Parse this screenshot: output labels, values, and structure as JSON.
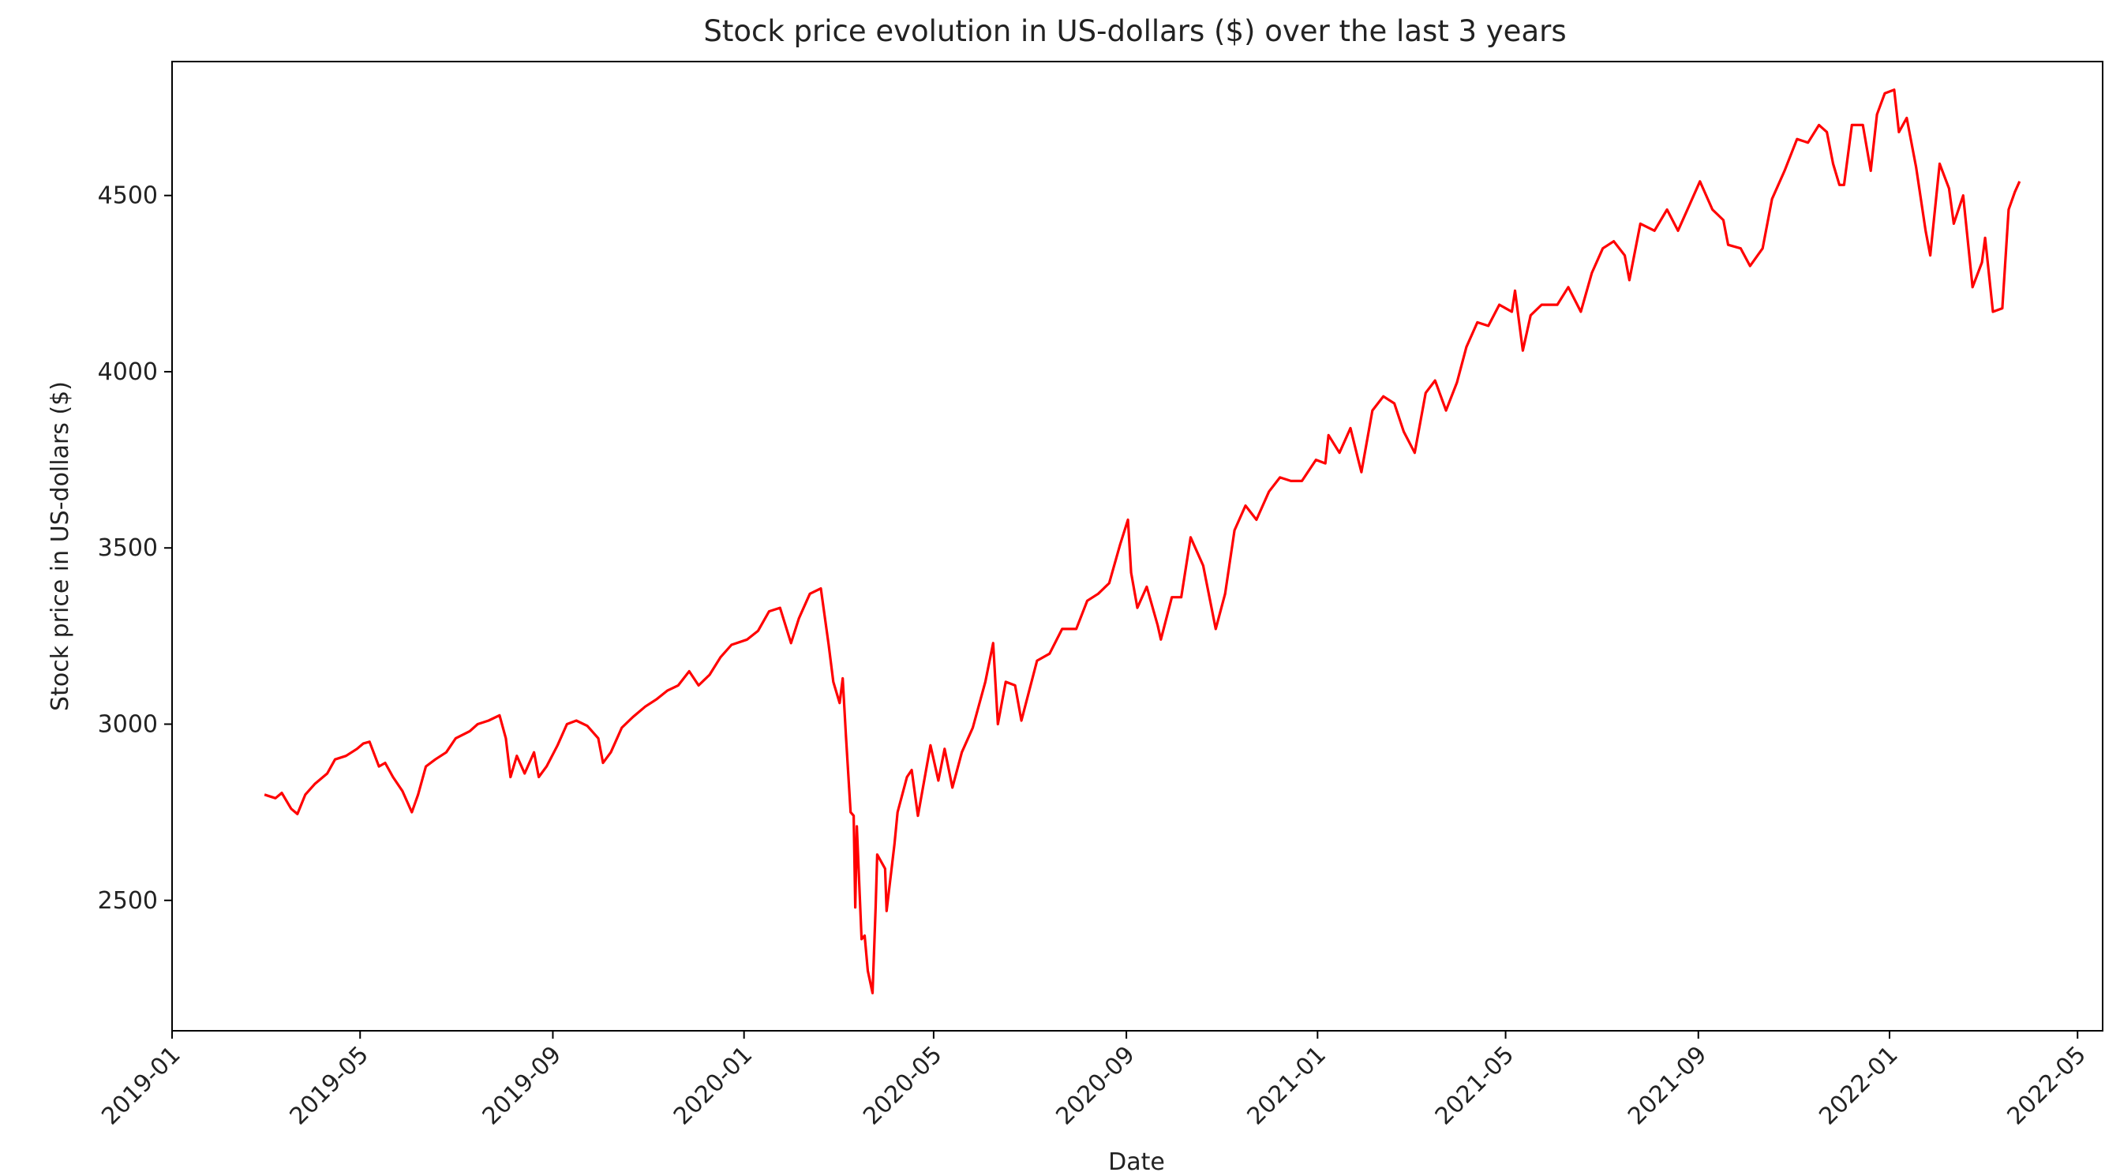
{
  "chart_data": {
    "type": "line",
    "title": "Stock price evolution in US-dollars ($) over the last 3 years",
    "xlabel": "Date",
    "ylabel": "Stock price in US-dollars ($)",
    "x_tick_labels": [
      "2019-01",
      "2019-05",
      "2019-09",
      "2020-01",
      "2020-05",
      "2020-09",
      "2021-01",
      "2021-05",
      "2021-09",
      "2022-01",
      "2022-05"
    ],
    "y_ticks": [
      2500,
      3000,
      3500,
      4000,
      4500
    ],
    "y_tick_labels": [
      "2500",
      "3000",
      "3500",
      "4000",
      "4500"
    ],
    "xlim": [
      "2019-01-01",
      "2022-05-17"
    ],
    "ylim": [
      2130,
      4880
    ],
    "grid": false,
    "series": [
      {
        "name": "Stock price",
        "color": "#ff0000",
        "points": [
          [
            "2019-03-01",
            2800
          ],
          [
            "2019-03-08",
            2790
          ],
          [
            "2019-03-12",
            2805
          ],
          [
            "2019-03-18",
            2760
          ],
          [
            "2019-03-22",
            2745
          ],
          [
            "2019-03-27",
            2800
          ],
          [
            "2019-04-02",
            2830
          ],
          [
            "2019-04-10",
            2860
          ],
          [
            "2019-04-15",
            2900
          ],
          [
            "2019-04-22",
            2910
          ],
          [
            "2019-04-29",
            2930
          ],
          [
            "2019-05-03",
            2945
          ],
          [
            "2019-05-07",
            2950
          ],
          [
            "2019-05-13",
            2880
          ],
          [
            "2019-05-17",
            2890
          ],
          [
            "2019-05-22",
            2850
          ],
          [
            "2019-05-28",
            2810
          ],
          [
            "2019-06-03",
            2750
          ],
          [
            "2019-06-07",
            2800
          ],
          [
            "2019-06-12",
            2880
          ],
          [
            "2019-06-18",
            2900
          ],
          [
            "2019-06-25",
            2920
          ],
          [
            "2019-07-01",
            2960
          ],
          [
            "2019-07-10",
            2980
          ],
          [
            "2019-07-15",
            3000
          ],
          [
            "2019-07-22",
            3010
          ],
          [
            "2019-07-29",
            3025
          ],
          [
            "2019-08-02",
            2960
          ],
          [
            "2019-08-05",
            2850
          ],
          [
            "2019-08-09",
            2910
          ],
          [
            "2019-08-14",
            2860
          ],
          [
            "2019-08-20",
            2920
          ],
          [
            "2019-08-23",
            2850
          ],
          [
            "2019-08-28",
            2880
          ],
          [
            "2019-09-04",
            2940
          ],
          [
            "2019-09-10",
            3000
          ],
          [
            "2019-09-16",
            3010
          ],
          [
            "2019-09-23",
            2995
          ],
          [
            "2019-09-30",
            2960
          ],
          [
            "2019-10-03",
            2890
          ],
          [
            "2019-10-08",
            2920
          ],
          [
            "2019-10-15",
            2990
          ],
          [
            "2019-10-22",
            3020
          ],
          [
            "2019-10-30",
            3050
          ],
          [
            "2019-11-06",
            3070
          ],
          [
            "2019-11-13",
            3095
          ],
          [
            "2019-11-20",
            3110
          ],
          [
            "2019-11-27",
            3150
          ],
          [
            "2019-12-03",
            3110
          ],
          [
            "2019-12-10",
            3140
          ],
          [
            "2019-12-17",
            3190
          ],
          [
            "2019-12-24",
            3225
          ],
          [
            "2020-01-03",
            3240
          ],
          [
            "2020-01-10",
            3265
          ],
          [
            "2020-01-17",
            3320
          ],
          [
            "2020-01-24",
            3330
          ],
          [
            "2020-01-31",
            3230
          ],
          [
            "2020-02-05",
            3300
          ],
          [
            "2020-02-12",
            3370
          ],
          [
            "2020-02-19",
            3385
          ],
          [
            "2020-02-24",
            3225
          ],
          [
            "2020-02-27",
            3120
          ],
          [
            "2020-03-02",
            3060
          ],
          [
            "2020-03-04",
            3130
          ],
          [
            "2020-03-06",
            2970
          ],
          [
            "2020-03-09",
            2750
          ],
          [
            "2020-03-11",
            2740
          ],
          [
            "2020-03-12",
            2480
          ],
          [
            "2020-03-13",
            2710
          ],
          [
            "2020-03-16",
            2390
          ],
          [
            "2020-03-18",
            2400
          ],
          [
            "2020-03-20",
            2300
          ],
          [
            "2020-03-23",
            2237
          ],
          [
            "2020-03-25",
            2480
          ],
          [
            "2020-03-26",
            2630
          ],
          [
            "2020-03-31",
            2590
          ],
          [
            "2020-04-01",
            2470
          ],
          [
            "2020-04-06",
            2660
          ],
          [
            "2020-04-08",
            2750
          ],
          [
            "2020-04-14",
            2850
          ],
          [
            "2020-04-17",
            2870
          ],
          [
            "2020-04-21",
            2740
          ],
          [
            "2020-04-29",
            2940
          ],
          [
            "2020-05-04",
            2840
          ],
          [
            "2020-05-08",
            2930
          ],
          [
            "2020-05-13",
            2820
          ],
          [
            "2020-05-19",
            2920
          ],
          [
            "2020-05-26",
            2990
          ],
          [
            "2020-06-03",
            3120
          ],
          [
            "2020-06-08",
            3230
          ],
          [
            "2020-06-11",
            3000
          ],
          [
            "2020-06-16",
            3120
          ],
          [
            "2020-06-22",
            3110
          ],
          [
            "2020-06-26",
            3010
          ],
          [
            "2020-07-06",
            3180
          ],
          [
            "2020-07-14",
            3200
          ],
          [
            "2020-07-22",
            3270
          ],
          [
            "2020-07-31",
            3270
          ],
          [
            "2020-08-07",
            3350
          ],
          [
            "2020-08-14",
            3370
          ],
          [
            "2020-08-21",
            3400
          ],
          [
            "2020-08-28",
            3510
          ],
          [
            "2020-09-02",
            3580
          ],
          [
            "2020-09-04",
            3430
          ],
          [
            "2020-09-08",
            3330
          ],
          [
            "2020-09-14",
            3390
          ],
          [
            "2020-09-21",
            3280
          ],
          [
            "2020-09-23",
            3240
          ],
          [
            "2020-09-30",
            3360
          ],
          [
            "2020-10-06",
            3360
          ],
          [
            "2020-10-12",
            3530
          ],
          [
            "2020-10-20",
            3450
          ],
          [
            "2020-10-28",
            3270
          ],
          [
            "2020-11-03",
            3370
          ],
          [
            "2020-11-09",
            3550
          ],
          [
            "2020-11-16",
            3620
          ],
          [
            "2020-11-23",
            3580
          ],
          [
            "2020-12-01",
            3660
          ],
          [
            "2020-12-08",
            3700
          ],
          [
            "2020-12-15",
            3690
          ],
          [
            "2020-12-22",
            3690
          ],
          [
            "2020-12-31",
            3750
          ],
          [
            "2021-01-06",
            3740
          ],
          [
            "2021-01-08",
            3820
          ],
          [
            "2021-01-15",
            3770
          ],
          [
            "2021-01-22",
            3840
          ],
          [
            "2021-01-27",
            3750
          ],
          [
            "2021-01-29",
            3715
          ],
          [
            "2021-02-05",
            3890
          ],
          [
            "2021-02-12",
            3930
          ],
          [
            "2021-02-19",
            3910
          ],
          [
            "2021-02-25",
            3830
          ],
          [
            "2021-03-04",
            3770
          ],
          [
            "2021-03-11",
            3940
          ],
          [
            "2021-03-17",
            3975
          ],
          [
            "2021-03-24",
            3890
          ],
          [
            "2021-03-31",
            3970
          ],
          [
            "2021-04-06",
            4070
          ],
          [
            "2021-04-13",
            4140
          ],
          [
            "2021-04-20",
            4130
          ],
          [
            "2021-04-27",
            4190
          ],
          [
            "2021-05-05",
            4170
          ],
          [
            "2021-05-07",
            4230
          ],
          [
            "2021-05-12",
            4060
          ],
          [
            "2021-05-17",
            4160
          ],
          [
            "2021-05-24",
            4190
          ],
          [
            "2021-06-03",
            4190
          ],
          [
            "2021-06-10",
            4240
          ],
          [
            "2021-06-18",
            4170
          ],
          [
            "2021-06-25",
            4280
          ],
          [
            "2021-07-02",
            4350
          ],
          [
            "2021-07-09",
            4370
          ],
          [
            "2021-07-16",
            4330
          ],
          [
            "2021-07-19",
            4260
          ],
          [
            "2021-07-26",
            4420
          ],
          [
            "2021-08-04",
            4400
          ],
          [
            "2021-08-12",
            4460
          ],
          [
            "2021-08-19",
            4400
          ],
          [
            "2021-08-26",
            4470
          ],
          [
            "2021-09-02",
            4540
          ],
          [
            "2021-09-10",
            4460
          ],
          [
            "2021-09-17",
            4430
          ],
          [
            "2021-09-20",
            4360
          ],
          [
            "2021-09-28",
            4350
          ],
          [
            "2021-10-04",
            4300
          ],
          [
            "2021-10-12",
            4350
          ],
          [
            "2021-10-18",
            4490
          ],
          [
            "2021-10-26",
            4570
          ],
          [
            "2021-11-03",
            4660
          ],
          [
            "2021-11-10",
            4650
          ],
          [
            "2021-11-17",
            4700
          ],
          [
            "2021-11-22",
            4680
          ],
          [
            "2021-11-26",
            4590
          ],
          [
            "2021-11-30",
            4530
          ],
          [
            "2021-12-03",
            4530
          ],
          [
            "2021-12-08",
            4700
          ],
          [
            "2021-12-15",
            4700
          ],
          [
            "2021-12-20",
            4570
          ],
          [
            "2021-12-24",
            4730
          ],
          [
            "2021-12-29",
            4790
          ],
          [
            "2022-01-04",
            4800
          ],
          [
            "2022-01-07",
            4680
          ],
          [
            "2022-01-12",
            4720
          ],
          [
            "2022-01-18",
            4580
          ],
          [
            "2022-01-24",
            4400
          ],
          [
            "2022-01-27",
            4330
          ],
          [
            "2022-02-02",
            4590
          ],
          [
            "2022-02-08",
            4520
          ],
          [
            "2022-02-11",
            4420
          ],
          [
            "2022-02-17",
            4500
          ],
          [
            "2022-02-23",
            4240
          ],
          [
            "2022-03-01",
            4310
          ],
          [
            "2022-03-03",
            4380
          ],
          [
            "2022-03-08",
            4170
          ],
          [
            "2022-03-14",
            4180
          ],
          [
            "2022-03-18",
            4460
          ],
          [
            "2022-03-22",
            4510
          ],
          [
            "2022-03-25",
            4540
          ]
        ]
      }
    ]
  }
}
